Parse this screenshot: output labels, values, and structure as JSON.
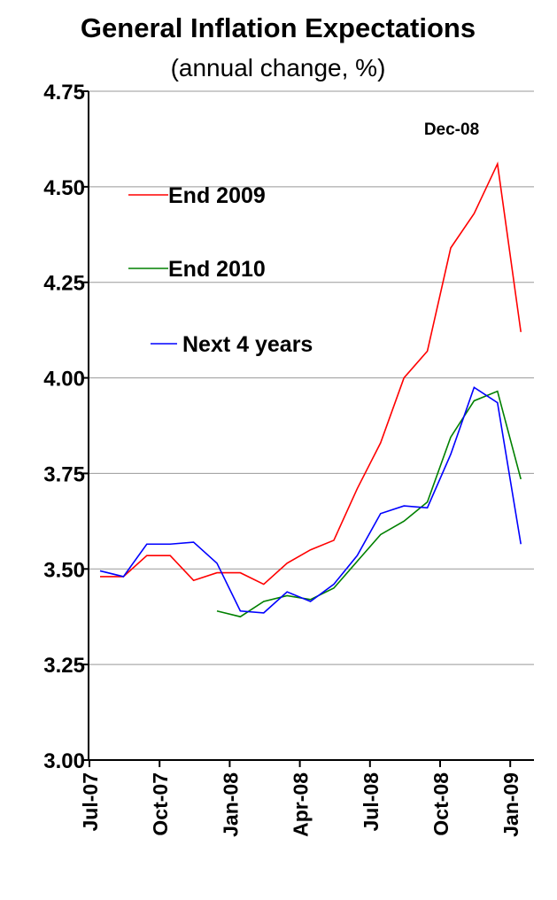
{
  "chart_data": {
    "type": "line",
    "title": "General Inflation Expectations",
    "subtitle": "(annual change, %)",
    "annotation": "Dec-08",
    "categories": [
      "Jul-07",
      null,
      null,
      "Oct-07",
      null,
      null,
      "Jan-08",
      null,
      null,
      "Apr-08",
      null,
      null,
      "Jul-08",
      null,
      null,
      "Oct-08",
      null,
      null,
      "Jan-09"
    ],
    "series": [
      {
        "name": "End 2009",
        "color": "#ff0000",
        "values": [
          3.48,
          3.48,
          3.535,
          3.535,
          3.47,
          3.49,
          3.49,
          3.46,
          3.515,
          3.55,
          3.575,
          3.71,
          3.83,
          4.0,
          4.07,
          4.34,
          4.43,
          4.56,
          4.12
        ]
      },
      {
        "name": "End 2010",
        "color": "#008000",
        "values": [
          null,
          null,
          null,
          null,
          null,
          3.39,
          3.375,
          3.415,
          3.43,
          3.42,
          3.45,
          3.52,
          3.59,
          3.625,
          3.675,
          3.845,
          3.94,
          3.965,
          3.735
        ]
      },
      {
        "name": "Next 4 years",
        "color": "#0000ff",
        "values": [
          3.495,
          3.48,
          3.565,
          3.565,
          3.57,
          3.515,
          3.39,
          3.385,
          3.44,
          3.415,
          3.46,
          3.535,
          3.645,
          3.665,
          3.66,
          3.8,
          3.975,
          3.935,
          3.565
        ]
      }
    ],
    "ylim": [
      3.0,
      4.75
    ],
    "yticks": [
      {
        "value": 3.0,
        "label": "3.00"
      },
      3.25,
      {
        "value": 3.5,
        "label": "3.50"
      },
      3.75,
      {
        "value": 4.0,
        "label": "4.00"
      },
      4.25,
      {
        "value": 4.5,
        "label": "4.50"
      },
      4.75
    ],
    "grid": true
  }
}
